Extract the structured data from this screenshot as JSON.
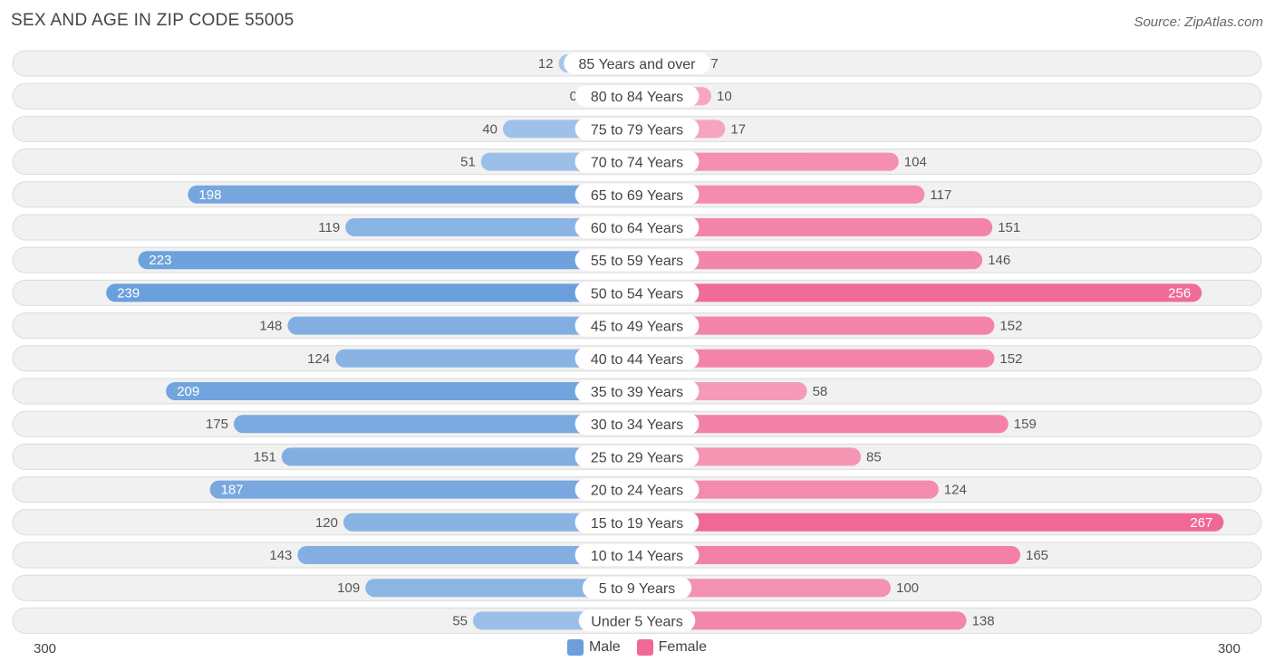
{
  "header": {
    "title": "SEX AND AGE IN ZIP CODE 55005",
    "source": "Source: ZipAtlas.com"
  },
  "colors": {
    "male": "#6a9fdb",
    "male_light": "#a9c8ec",
    "female": "#f06894",
    "female_light": "#f7a8c2"
  },
  "chart_data": {
    "type": "bar",
    "orientation": "horizontal-diverging",
    "categories": [
      "85 Years and over",
      "80 to 84 Years",
      "75 to 79 Years",
      "70 to 74 Years",
      "65 to 69 Years",
      "60 to 64 Years",
      "55 to 59 Years",
      "50 to 54 Years",
      "45 to 49 Years",
      "40 to 44 Years",
      "35 to 39 Years",
      "30 to 34 Years",
      "25 to 29 Years",
      "20 to 24 Years",
      "15 to 19 Years",
      "10 to 14 Years",
      "5 to 9 Years",
      "Under 5 Years"
    ],
    "series": [
      {
        "name": "Male",
        "values": [
          12,
          0,
          40,
          51,
          198,
          119,
          223,
          239,
          148,
          124,
          209,
          175,
          151,
          187,
          120,
          143,
          109,
          55
        ]
      },
      {
        "name": "Female",
        "values": [
          7,
          10,
          17,
          104,
          117,
          151,
          146,
          256,
          152,
          152,
          58,
          159,
          85,
          124,
          267,
          165,
          100,
          138
        ]
      }
    ],
    "xlim": [
      -300,
      300
    ],
    "axis_labels": {
      "left": "300",
      "right": "300"
    },
    "legend": {
      "position": "bottom-center",
      "items": [
        "Male",
        "Female"
      ]
    }
  }
}
